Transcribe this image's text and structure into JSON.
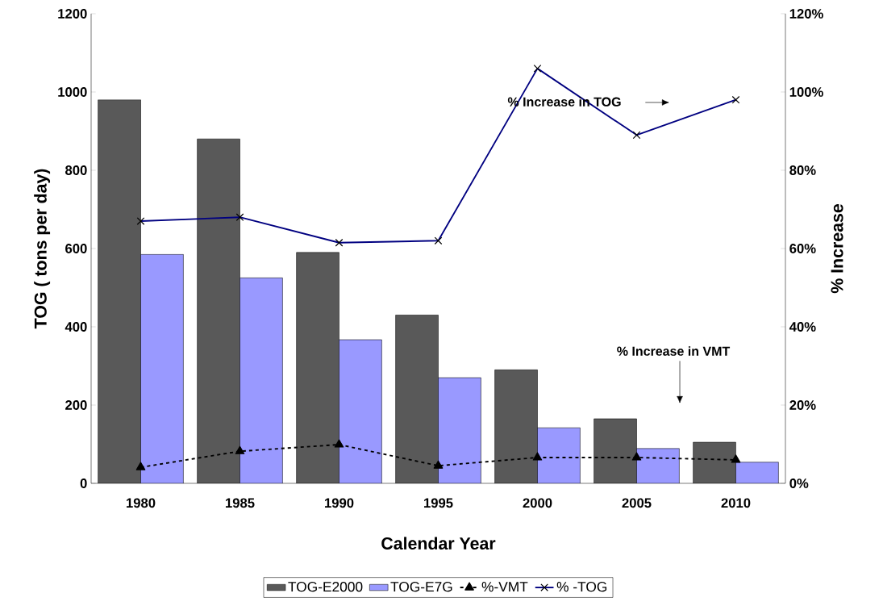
{
  "chart_data": {
    "type": "bar",
    "xlabel": "Calendar Year",
    "ylabel": "TOG ( tons per day)",
    "y2label": "% Increase",
    "categories": [
      "1980",
      "1985",
      "1990",
      "1995",
      "2000",
      "2005",
      "2010"
    ],
    "series": [
      {
        "name": "TOG-E2000",
        "color": "#595959",
        "values": [
          980,
          880,
          590,
          430,
          290,
          165,
          105
        ]
      },
      {
        "name": "TOG-E7G",
        "color": "#9999ff",
        "values": [
          585,
          525,
          367,
          270,
          142,
          89,
          54
        ]
      },
      {
        "name": "%-VMT",
        "type": "line",
        "axis": "y2",
        "color": "#000000",
        "marker": "triangle",
        "line_style": "dashed",
        "values": [
          4.1,
          8.2,
          9.9,
          4.5,
          6.6,
          6.6,
          6.0
        ]
      },
      {
        "name": "% -TOG",
        "type": "line",
        "axis": "y2",
        "color": "#000080",
        "marker": "cross",
        "line_style": "solid",
        "values": [
          67,
          68,
          61.5,
          62,
          106,
          89,
          98
        ]
      }
    ],
    "ylim": [
      0,
      1200
    ],
    "yticks": [
      0,
      200,
      400,
      600,
      800,
      1000,
      1200
    ],
    "y2lim": [
      0,
      120
    ],
    "y2ticks": [
      {
        "value": 0,
        "label": "0%"
      },
      {
        "value": 20,
        "label": "20%"
      },
      {
        "value": 40,
        "label": "40%"
      },
      {
        "value": 60,
        "label": "60%"
      },
      {
        "value": 80,
        "label": "80%"
      },
      {
        "value": 100,
        "label": "100%"
      },
      {
        "value": 120,
        "label": "120%"
      }
    ],
    "annotations": [
      "% Increase in TOG",
      "% Increase in VMT"
    ],
    "legend": "bottom",
    "grid": false
  }
}
